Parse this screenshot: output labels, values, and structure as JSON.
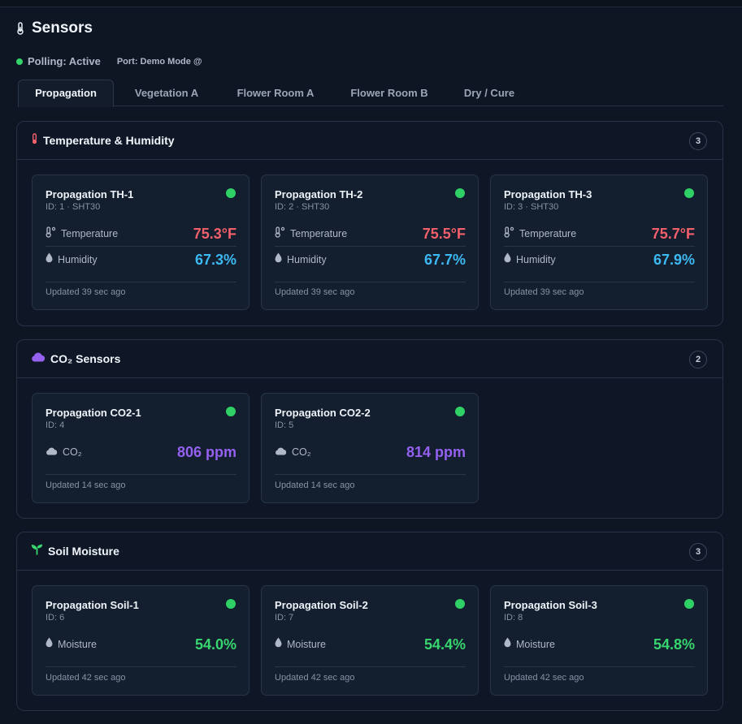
{
  "page": {
    "title": "Sensors"
  },
  "status": {
    "polling": "Polling: Active",
    "port": "Port: Demo Mode @"
  },
  "tabs": [
    {
      "label": "Propagation",
      "active": true
    },
    {
      "label": "Vegetation A",
      "active": false
    },
    {
      "label": "Flower Room A",
      "active": false
    },
    {
      "label": "Flower Room B",
      "active": false
    },
    {
      "label": "Dry / Cure",
      "active": false
    }
  ],
  "colors": {
    "accent_temp": "#f3606b",
    "accent_humidity": "#3cb9f2",
    "accent_co2": "#9461f0",
    "accent_soil": "#37d66e",
    "status_ok": "#2fd166"
  },
  "sections": {
    "th": {
      "title": "Temperature & Humidity",
      "icon": "thermometer-icon",
      "count": "3",
      "cards": [
        {
          "name": "Propagation TH-1",
          "id": "ID: 1 · SHT30",
          "temp_label": "Temperature",
          "temp": "75.3°F",
          "hum_label": "Humidity",
          "hum": "67.3%",
          "updated": "Updated 39 sec ago"
        },
        {
          "name": "Propagation TH-2",
          "id": "ID: 2 · SHT30",
          "temp_label": "Temperature",
          "temp": "75.5°F",
          "hum_label": "Humidity",
          "hum": "67.7%",
          "updated": "Updated 39 sec ago"
        },
        {
          "name": "Propagation TH-3",
          "id": "ID: 3 · SHT30",
          "temp_label": "Temperature",
          "temp": "75.7°F",
          "hum_label": "Humidity",
          "hum": "67.9%",
          "updated": "Updated 39 sec ago"
        }
      ]
    },
    "co2": {
      "title": "CO₂ Sensors",
      "icon": "cloud-icon",
      "count": "2",
      "cards": [
        {
          "name": "Propagation CO2-1",
          "id": "ID: 4",
          "label": "CO₂",
          "value": "806 ppm",
          "updated": "Updated 14 sec ago"
        },
        {
          "name": "Propagation CO2-2",
          "id": "ID: 5",
          "label": "CO₂",
          "value": "814 ppm",
          "updated": "Updated 14 sec ago"
        }
      ]
    },
    "soil": {
      "title": "Soil Moisture",
      "icon": "sprout-icon",
      "count": "3",
      "cards": [
        {
          "name": "Propagation Soil-1",
          "id": "ID: 6",
          "label": "Moisture",
          "value": "54.0%",
          "updated": "Updated 42 sec ago"
        },
        {
          "name": "Propagation Soil-2",
          "id": "ID: 7",
          "label": "Moisture",
          "value": "54.4%",
          "updated": "Updated 42 sec ago"
        },
        {
          "name": "Propagation Soil-3",
          "id": "ID: 8",
          "label": "Moisture",
          "value": "54.8%",
          "updated": "Updated 42 sec ago"
        }
      ]
    }
  }
}
